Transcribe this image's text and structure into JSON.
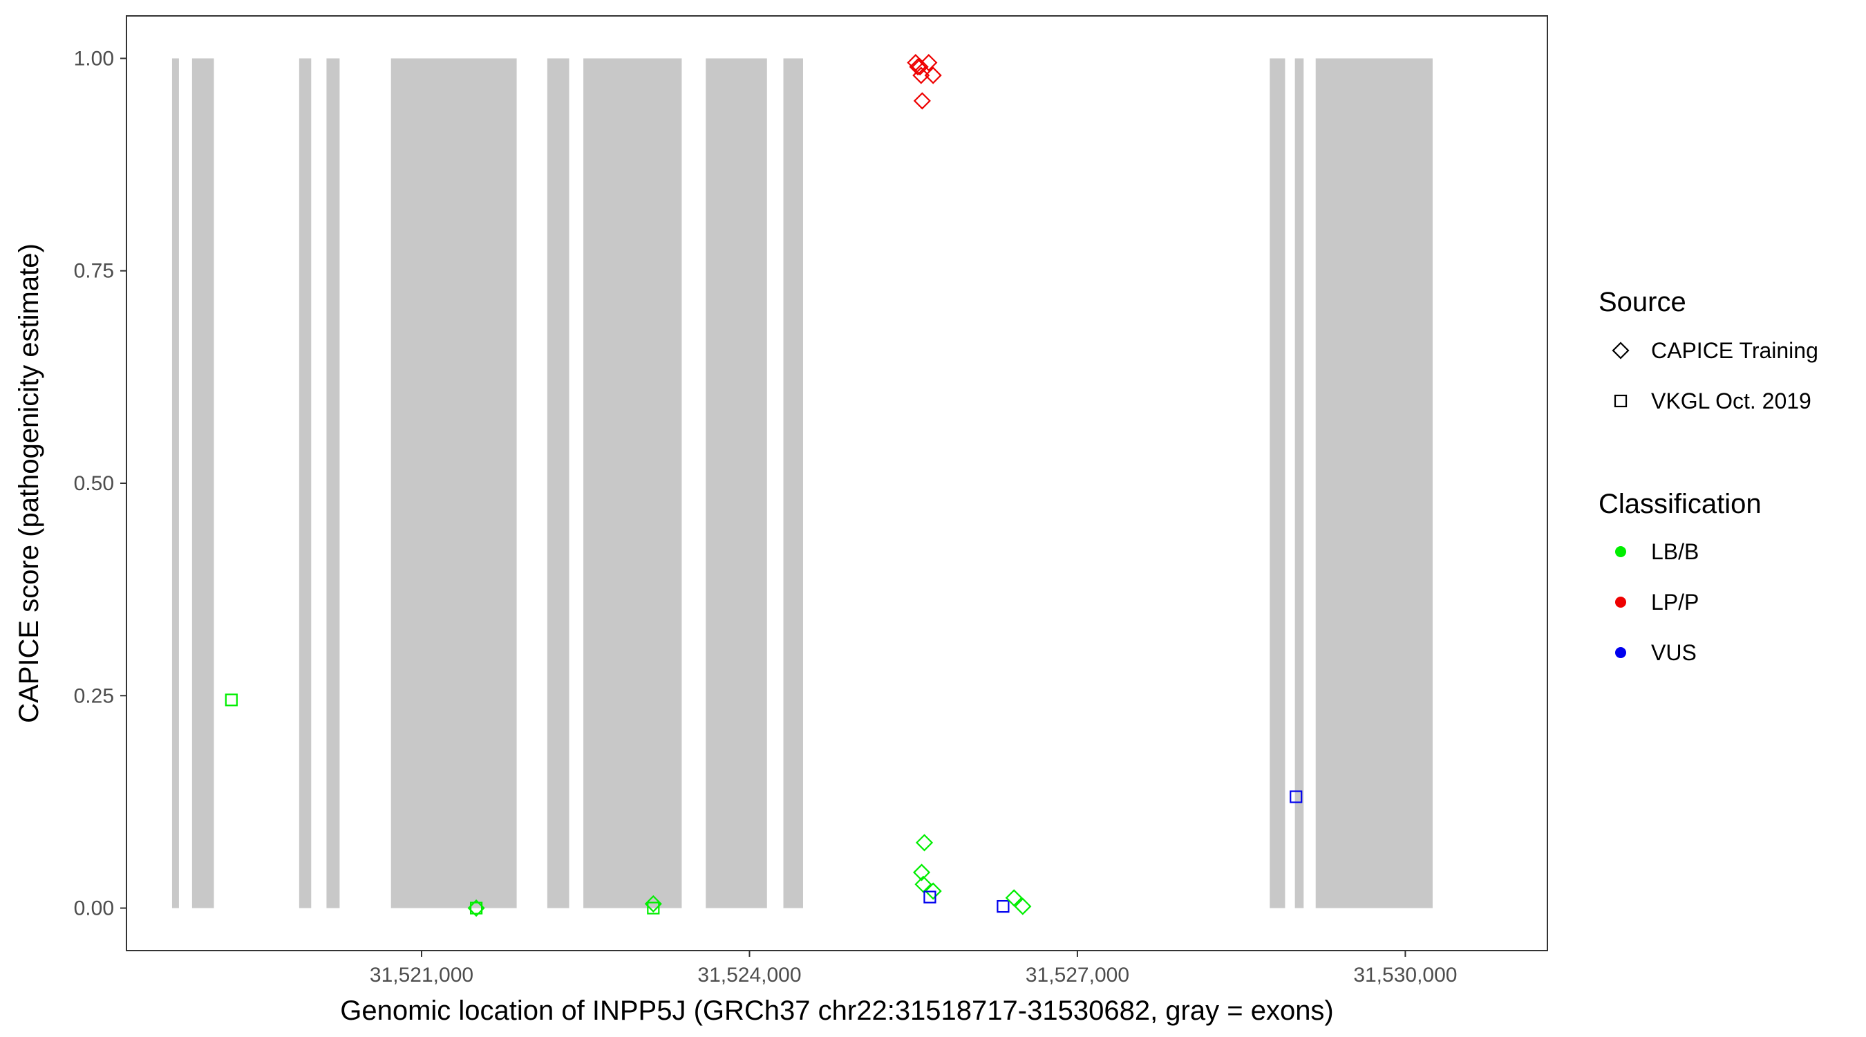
{
  "chart_data": {
    "type": "scatter",
    "xlabel": "Genomic location of INPP5J (GRCh37 chr22:31518717-31530682, gray = exons)",
    "ylabel": "CAPICE score (pathogenicity estimate)",
    "xlim": [
      31518300,
      31531300
    ],
    "ylim": [
      -0.05,
      1.05
    ],
    "x_ticks": [
      31521000,
      31524000,
      31527000,
      31530000
    ],
    "x_tick_labels": [
      "31,521,000",
      "31,524,000",
      "31,527,000",
      "31,530,000"
    ],
    "y_ticks": [
      0,
      0.25,
      0.5,
      0.75,
      1.0
    ],
    "y_tick_labels": [
      "0.00",
      "0.25",
      "0.50",
      "0.75",
      "1.00"
    ],
    "grid": false,
    "exon_color": "#c8c8c8",
    "exons": [
      [
        31518717,
        31518780
      ],
      [
        31518900,
        31519100
      ],
      [
        31519880,
        31519990
      ],
      [
        31520130,
        31520250
      ],
      [
        31520720,
        31521870
      ],
      [
        31522150,
        31522350
      ],
      [
        31522480,
        31523380
      ],
      [
        31523600,
        31524160
      ],
      [
        31524310,
        31524490
      ],
      [
        31528760,
        31528900
      ],
      [
        31528990,
        31529070
      ],
      [
        31529180,
        31530250
      ]
    ],
    "legend": {
      "placement": "right",
      "source": {
        "title": "Source",
        "items": [
          {
            "label": "CAPICE Training",
            "shape": "diamond"
          },
          {
            "label": "VKGL Oct. 2019",
            "shape": "square"
          }
        ]
      },
      "classification": {
        "title": "Classification",
        "items": [
          {
            "label": "LB/B",
            "color": "#00ee00"
          },
          {
            "label": "LP/P",
            "color": "#ee0000"
          },
          {
            "label": "VUS",
            "color": "#0000ee"
          }
        ]
      }
    },
    "points": [
      {
        "x": 31519260,
        "y": 0.245,
        "source": "VKGL Oct. 2019",
        "classification": "LB/B"
      },
      {
        "x": 31521500,
        "y": 0.0,
        "source": "CAPICE Training",
        "classification": "LB/B"
      },
      {
        "x": 31521500,
        "y": 0.0,
        "source": "VKGL Oct. 2019",
        "classification": "LB/B"
      },
      {
        "x": 31523120,
        "y": 0.005,
        "source": "CAPICE Training",
        "classification": "LB/B"
      },
      {
        "x": 31523120,
        "y": 0.0,
        "source": "VKGL Oct. 2019",
        "classification": "LB/B"
      },
      {
        "x": 31525520,
        "y": 0.995,
        "source": "CAPICE Training",
        "classification": "LP/P"
      },
      {
        "x": 31525540,
        "y": 0.99,
        "source": "CAPICE Training",
        "classification": "LP/P"
      },
      {
        "x": 31525560,
        "y": 0.99,
        "source": "CAPICE Training",
        "classification": "LP/P"
      },
      {
        "x": 31525570,
        "y": 0.98,
        "source": "CAPICE Training",
        "classification": "LP/P"
      },
      {
        "x": 31525640,
        "y": 0.995,
        "source": "CAPICE Training",
        "classification": "LP/P"
      },
      {
        "x": 31525680,
        "y": 0.98,
        "source": "CAPICE Training",
        "classification": "LP/P"
      },
      {
        "x": 31525580,
        "y": 0.95,
        "source": "CAPICE Training",
        "classification": "LP/P"
      },
      {
        "x": 31525600,
        "y": 0.077,
        "source": "CAPICE Training",
        "classification": "LB/B"
      },
      {
        "x": 31525575,
        "y": 0.042,
        "source": "CAPICE Training",
        "classification": "LB/B"
      },
      {
        "x": 31525590,
        "y": 0.028,
        "source": "CAPICE Training",
        "classification": "LB/B"
      },
      {
        "x": 31525680,
        "y": 0.02,
        "source": "CAPICE Training",
        "classification": "LB/B"
      },
      {
        "x": 31525650,
        "y": 0.013,
        "source": "VKGL Oct. 2019",
        "classification": "VUS"
      },
      {
        "x": 31526320,
        "y": 0.002,
        "source": "VKGL Oct. 2019",
        "classification": "VUS"
      },
      {
        "x": 31526420,
        "y": 0.012,
        "source": "CAPICE Training",
        "classification": "LB/B"
      },
      {
        "x": 31526500,
        "y": 0.002,
        "source": "CAPICE Training",
        "classification": "LB/B"
      },
      {
        "x": 31529000,
        "y": 0.131,
        "source": "VKGL Oct. 2019",
        "classification": "VUS"
      }
    ]
  }
}
